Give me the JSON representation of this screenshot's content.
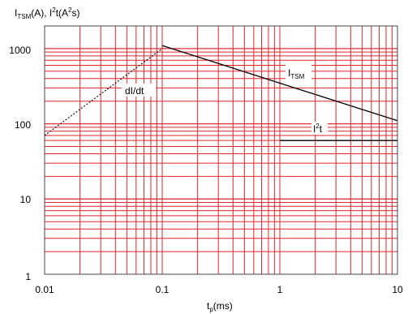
{
  "chart_data": {
    "type": "line",
    "xlabel": {
      "base": "t",
      "sub": "p",
      "rest": "(ms)"
    },
    "ylabel": {
      "p1": "I",
      "p1_sub": "TSM",
      "p2": "(A), I",
      "p2_sup": "2",
      "p3": "t(A",
      "p3_sup": "2",
      "p4": "s)"
    },
    "x_scale": "log",
    "y_scale": "log",
    "xlim": [
      0.01,
      10
    ],
    "ylim": [
      1,
      2000
    ],
    "x_ticks": [
      "0.01",
      "0.1",
      "1",
      "10"
    ],
    "y_ticks": [
      "1",
      "10",
      "100",
      "1000"
    ],
    "grid": true,
    "grid_color": "#e3242b",
    "series": [
      {
        "name": "dI/dt",
        "style": "dotted",
        "x": [
          0.01,
          0.1
        ],
        "y": [
          70,
          1000
        ]
      },
      {
        "name": "I_TSM",
        "style": "solid",
        "x": [
          0.1,
          10
        ],
        "y": [
          1100,
          110
        ]
      },
      {
        "name": "I²t",
        "style": "solid",
        "x": [
          1,
          10
        ],
        "y": [
          60,
          60
        ]
      }
    ],
    "annotations": {
      "didt": "dI/dt",
      "itsm_base": "I",
      "itsm_sub": "TSM",
      "i2t_base": "I",
      "i2t_sup": "2",
      "i2t_rest": "t"
    }
  }
}
